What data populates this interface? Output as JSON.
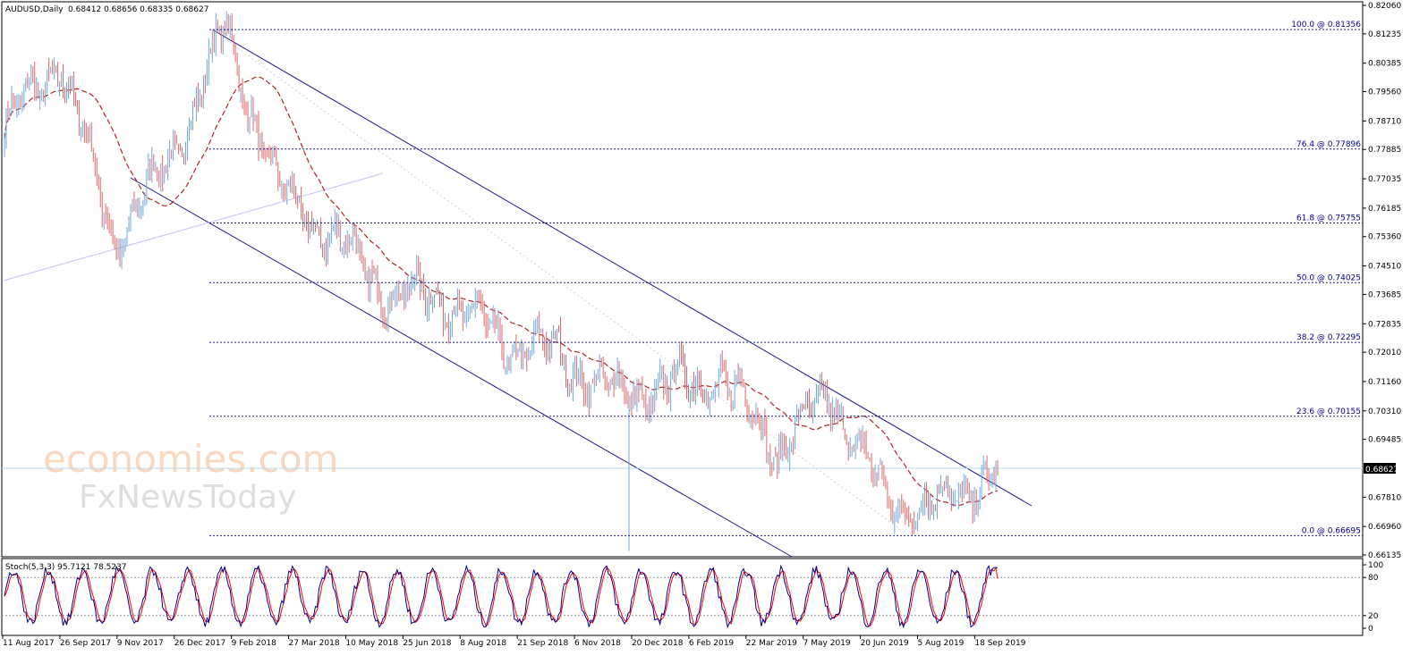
{
  "header": {
    "symbol": "AUDUSD,Daily",
    "ohlc": "0.68412 0.68656 0.68335 0.68627"
  },
  "price_scale": {
    "labels": [
      "0.82060",
      "0.81235",
      "0.80385",
      "0.79560",
      "0.78710",
      "0.77885",
      "0.77035",
      "0.76185",
      "0.75360",
      "0.74510",
      "0.73685",
      "0.72835",
      "0.72010",
      "0.71160",
      "0.70310",
      "0.69485",
      "0.67810",
      "0.66960",
      "0.66135"
    ],
    "current_price": "0.68627"
  },
  "fibonacci": [
    {
      "label": "100.0 @ 0.81356",
      "price": 0.81356
    },
    {
      "label": "76.4 @ 0.77896",
      "price": 0.77896
    },
    {
      "label": "61.8 @ 0.75755",
      "price": 0.75755
    },
    {
      "label": "50.0 @ 0.74025",
      "price": 0.74025
    },
    {
      "label": "38.2 @ 0.72295",
      "price": 0.72295
    },
    {
      "label": "23.6 @ 0.70155",
      "price": 0.70155
    },
    {
      "label": "0.0 @ 0.66695",
      "price": 0.66695
    }
  ],
  "stochastic": {
    "title": "Stoch(5,3,3) 95.7121 78.5237",
    "levels": [
      "100",
      "80",
      "20",
      "0"
    ]
  },
  "time_axis": [
    "11 Aug 2017",
    "26 Sep 2017",
    "9 Nov 2017",
    "26 Dec 2017",
    "9 Feb 2018",
    "27 Mar 2018",
    "10 May 2018",
    "25 Jun 2018",
    "8 Aug 2018",
    "21 Sep 2018",
    "6 Nov 2018",
    "20 Dec 2018",
    "6 Feb 2019",
    "22 Mar 2019",
    "7 May 2019",
    "20 Jun 2019",
    "5 Aug 2019",
    "18 Sep 2019"
  ],
  "watermark": {
    "line1": "economies.com",
    "line2": "FxNewsToday"
  },
  "colors": {
    "bull": "#6fa8dc",
    "bear": "#e06666",
    "ma": "#b22222",
    "channel": "#1a1a8c",
    "fib": "#1a1a8c",
    "stoch_main": "#00008b",
    "stoch_signal": "#ff0000",
    "current_line": "#b7dbe8"
  },
  "chart_data": {
    "type": "candlestick",
    "title": "AUDUSD,Daily",
    "ylim": [
      0.6605,
      0.821
    ],
    "stoch_ylim": [
      0,
      100
    ],
    "key_points": [
      {
        "date": "11 Aug 2017",
        "close": 0.785
      },
      {
        "date": "Sep 2017",
        "close": 0.805
      },
      {
        "date": "Nov 2017",
        "close": 0.752
      },
      {
        "date": "26 Dec 2017",
        "close": 0.776
      },
      {
        "date": "late Jan 2018",
        "close": 0.8136
      },
      {
        "date": "27 Mar 2018",
        "close": 0.766
      },
      {
        "date": "10 May 2018",
        "close": 0.753
      },
      {
        "date": "25 Jun 2018",
        "close": 0.737
      },
      {
        "date": "8 Aug 2018",
        "close": 0.736
      },
      {
        "date": "21 Sep 2018",
        "close": 0.723
      },
      {
        "date": "6 Nov 2018",
        "close": 0.72
      },
      {
        "date": "20 Dec 2018",
        "close": 0.708
      },
      {
        "date": "6 Feb 2019",
        "close": 0.71
      },
      {
        "date": "22 Mar 2019",
        "close": 0.713
      },
      {
        "date": "7 May 2019",
        "close": 0.692
      },
      {
        "date": "20 Jun 2019",
        "close": 0.708
      },
      {
        "date": "5 Aug 2019",
        "close": 0.676
      },
      {
        "date": "18 Sep 2019",
        "close": 0.676
      },
      {
        "date": "last",
        "close": 0.68627
      }
    ]
  }
}
